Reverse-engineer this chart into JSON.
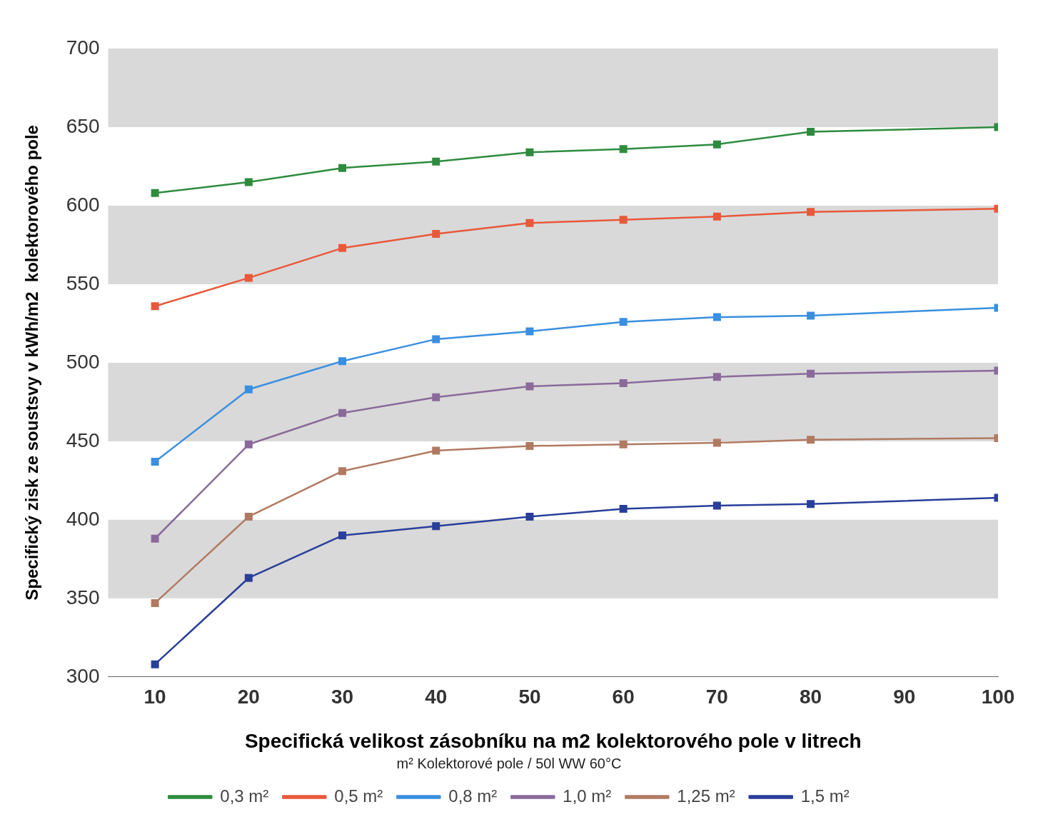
{
  "chart_data": {
    "type": "line",
    "xlabel": "Specifická velikost zásobníku na m2 kolektorového pole v litrech",
    "ylabel": "Specifický zisk ze soustsvy v kWh/m2  kolektorového pole",
    "legend_title": "m² Kolektorové pole / 50l WW 60°C",
    "x": [
      10,
      20,
      30,
      40,
      50,
      60,
      70,
      80,
      100
    ],
    "series": [
      {
        "name": "0,3 m²",
        "color": "#2e8b3e",
        "values": [
          608,
          615,
          624,
          628,
          634,
          636,
          639,
          647,
          650
        ]
      },
      {
        "name": "0,5 m²",
        "color": "#e8583a",
        "values": [
          536,
          554,
          573,
          582,
          589,
          591,
          593,
          596,
          598
        ]
      },
      {
        "name": "0,8 m²",
        "color": "#3a8fe0",
        "values": [
          437,
          483,
          501,
          515,
          520,
          526,
          529,
          530,
          535
        ]
      },
      {
        "name": "1,0 m²",
        "color": "#8a6a9a",
        "values": [
          388,
          448,
          468,
          478,
          485,
          487,
          491,
          493,
          495
        ]
      },
      {
        "name": "1,25 m²",
        "color": "#b07a62",
        "values": [
          347,
          402,
          431,
          444,
          447,
          448,
          449,
          451,
          452
        ]
      },
      {
        "name": "1,5 m²",
        "color": "#2a3f9a",
        "values": [
          308,
          363,
          390,
          396,
          402,
          407,
          409,
          410,
          414
        ]
      }
    ],
    "xlim": [
      5,
      100
    ],
    "xticks": [
      10,
      20,
      30,
      40,
      50,
      60,
      70,
      80,
      90,
      100
    ],
    "ylim": [
      300,
      700
    ],
    "yticks": [
      300,
      350,
      400,
      450,
      500,
      550,
      600,
      650,
      700
    ],
    "bands": [
      {
        "axis": "y",
        "from": 350,
        "to": 400,
        "color": "#d9d9d9"
      },
      {
        "axis": "y",
        "from": 450,
        "to": 500,
        "color": "#d9d9d9"
      },
      {
        "axis": "y",
        "from": 550,
        "to": 600,
        "color": "#d9d9d9"
      },
      {
        "axis": "y",
        "from": 650,
        "to": 700,
        "color": "#d9d9d9"
      }
    ],
    "grid": false,
    "legend": "bottom",
    "marker": "square",
    "line_style": "solid"
  }
}
